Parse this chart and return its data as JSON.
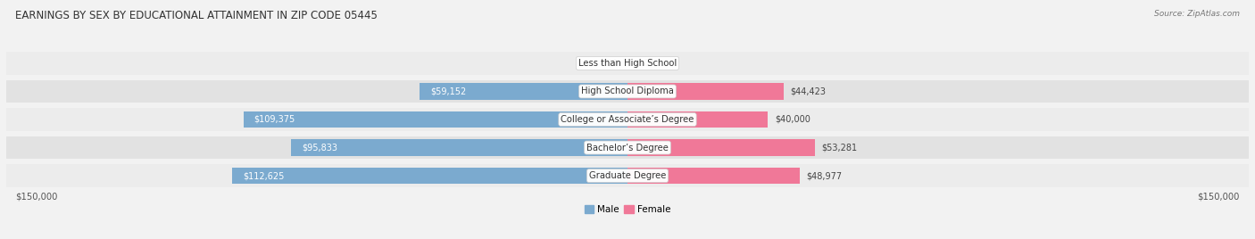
{
  "title": "EARNINGS BY SEX BY EDUCATIONAL ATTAINMENT IN ZIP CODE 05445",
  "source": "Source: ZipAtlas.com",
  "categories": [
    "Less than High School",
    "High School Diploma",
    "College or Associate’s Degree",
    "Bachelor’s Degree",
    "Graduate Degree"
  ],
  "male_values": [
    0,
    59152,
    109375,
    95833,
    112625
  ],
  "female_values": [
    0,
    44423,
    40000,
    53281,
    48977
  ],
  "male_color": "#7baacf",
  "female_color": "#f07898",
  "male_label": "Male",
  "female_label": "Female",
  "max_val": 150000,
  "axis_label_left": "$150,000",
  "axis_label_right": "$150,000",
  "row_colors": [
    "#ececec",
    "#e2e2e2"
  ],
  "title_fontsize": 8.5,
  "label_fontsize": 7.2,
  "bar_label_fontsize": 7.0,
  "legend_fontsize": 7.5
}
